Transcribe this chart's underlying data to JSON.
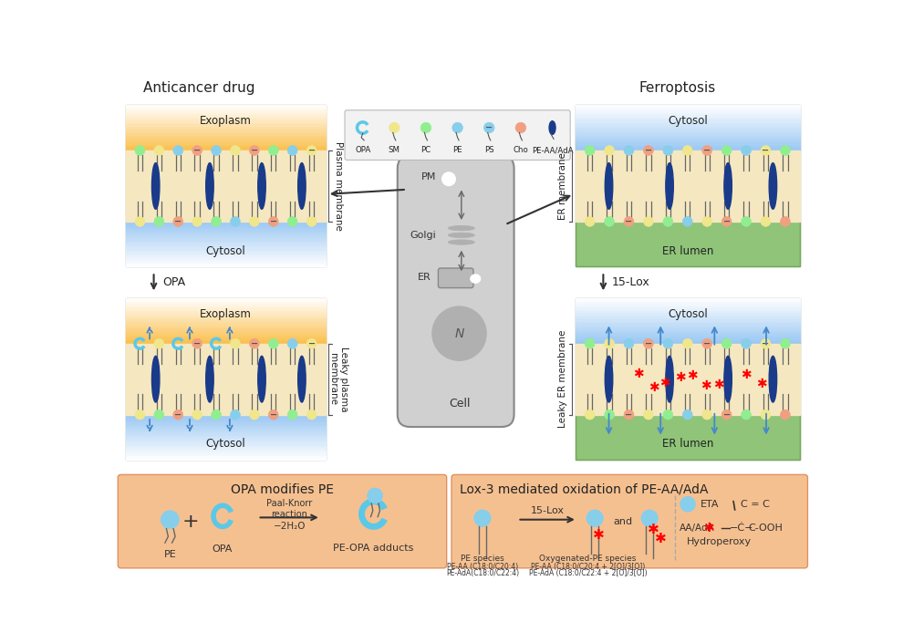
{
  "title_left": "Anticancer drug",
  "title_right": "Ferroptosis",
  "bg_color": "#ffffff",
  "plasma_membrane_label": "Plasma membrane",
  "leaky_plasma_label": "Leaky plasma\nmembrane",
  "er_membrane_label": "ER membrane",
  "leaky_er_label": "Leaky ER membrane",
  "bottom_left_title": "OPA modifies PE",
  "bottom_right_title": "Lox-3 mediated oxidation of PE-AA/AdA",
  "orange_exoplasm": "#f5a623",
  "yellow_membrane": "#f5e8c0",
  "blue_cytosol_light": "#ddeeff",
  "blue_cytosol_dark": "#aaccee",
  "green_er_lumen": "#6ab04c",
  "blue_oval": "#1a3a8a",
  "head_green": "#90EE90",
  "head_yellow": "#f0e68c",
  "head_cyan": "#87CEEB",
  "head_peach": "#f0a080",
  "dashed_blue": "#4488cc",
  "bottom_box_bg": "#f5c090",
  "bottom_box_edge": "#e09060",
  "cell_bg": "#c8c8c8",
  "arrow_dark": "#333333"
}
